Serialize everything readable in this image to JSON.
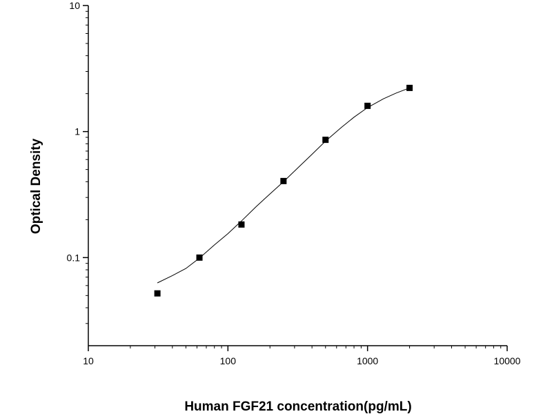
{
  "chart_data": {
    "type": "scatter",
    "title": "",
    "xlabel": "Human FGF21 concentration(pg/mL)",
    "ylabel": "Optical Density",
    "xscale": "log",
    "yscale": "log",
    "xlim": [
      10,
      10000
    ],
    "ylim": [
      0.02,
      10
    ],
    "x_ticks": [
      {
        "value": 10,
        "label": "10"
      },
      {
        "value": 100,
        "label": "100"
      },
      {
        "value": 1000,
        "label": "1000"
      },
      {
        "value": 10000,
        "label": "10000"
      }
    ],
    "y_ticks": [
      {
        "value": 0.1,
        "label": "0.1"
      },
      {
        "value": 1,
        "label": "1"
      },
      {
        "value": 10,
        "label": "10"
      }
    ],
    "grid": false,
    "legend": "none",
    "series": [
      {
        "x": [
          31.25,
          62.5,
          125,
          250,
          500,
          1000,
          2000
        ],
        "y": [
          0.052,
          0.1,
          0.183,
          0.405,
          0.86,
          1.6,
          2.22
        ],
        "marker": "square",
        "color": "#000000"
      }
    ],
    "fit_curve": {
      "x": [
        31.25,
        40,
        50,
        62.5,
        80,
        100,
        125,
        160,
        200,
        250,
        320,
        400,
        500,
        650,
        800,
        1000,
        1300,
        1600,
        2000
      ],
      "y": [
        0.063,
        0.072,
        0.082,
        0.099,
        0.126,
        0.155,
        0.195,
        0.255,
        0.32,
        0.4,
        0.52,
        0.66,
        0.84,
        1.08,
        1.3,
        1.55,
        1.82,
        2.02,
        2.22
      ],
      "color": "#000000"
    }
  }
}
